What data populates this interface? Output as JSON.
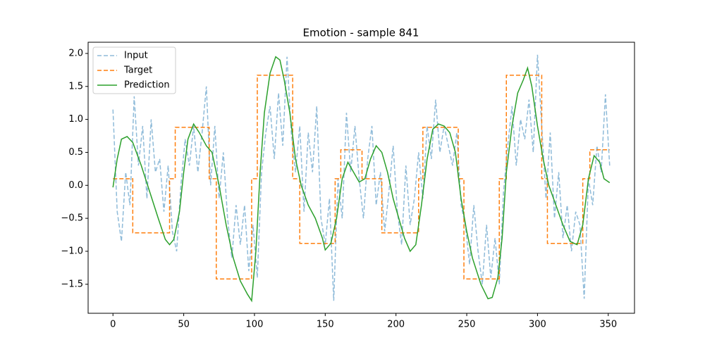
{
  "chart_data": {
    "type": "line",
    "title": "Emotion - sample 841",
    "xlim": [
      -17.55,
      368.55
    ],
    "xticks": [
      0,
      50,
      100,
      150,
      200,
      250,
      300,
      350
    ],
    "ylim": [
      -1.94,
      2.17
    ],
    "yticks": [
      {
        "value": -1.5,
        "label": "−1.5"
      },
      {
        "value": -1.0,
        "label": "−1.0"
      },
      {
        "value": -0.5,
        "label": "−0.5"
      },
      {
        "value": 0.0,
        "label": "0.0"
      },
      0.5,
      {
        "value": 1.0,
        "label": "1.0"
      },
      1.5,
      {
        "value": 2.0,
        "label": "2.0"
      }
    ],
    "legend": "upper left",
    "series": [
      {
        "name": "Input",
        "color": "#1f77b4",
        "alpha": 0.5,
        "linestyle": "dashed",
        "x": [
          0,
          3,
          6,
          9,
          12,
          15,
          18,
          21,
          24,
          27,
          30,
          33,
          36,
          39,
          42,
          45,
          48,
          51,
          54,
          57,
          60,
          63,
          66,
          69,
          72,
          75,
          78,
          81,
          84,
          87,
          90,
          93,
          96,
          99,
          102,
          105,
          108,
          111,
          114,
          117,
          120,
          123,
          126,
          129,
          132,
          135,
          138,
          141,
          144,
          147,
          150,
          153,
          156,
          159,
          162,
          165,
          168,
          171,
          174,
          177,
          180,
          183,
          186,
          189,
          192,
          195,
          198,
          201,
          204,
          207,
          210,
          213,
          216,
          219,
          222,
          225,
          228,
          231,
          234,
          237,
          240,
          243,
          246,
          249,
          252,
          255,
          258,
          261,
          264,
          267,
          270,
          273,
          276,
          279,
          282,
          285,
          288,
          291,
          294,
          297,
          300,
          303,
          306,
          309,
          312,
          315,
          318,
          321,
          324,
          327,
          330,
          333,
          336,
          339,
          342,
          345,
          348,
          351
        ],
        "values": [
          1.15,
          -0.4,
          -0.85,
          0.2,
          -0.3,
          1.35,
          0.3,
          0.9,
          -0.2,
          1.0,
          0.2,
          0.4,
          -0.4,
          0.3,
          -0.7,
          -1.0,
          0.0,
          0.7,
          0.3,
          0.9,
          0.2,
          0.8,
          1.5,
          0.0,
          0.9,
          -0.2,
          0.5,
          -0.5,
          -1.1,
          -0.3,
          -0.9,
          -0.3,
          -1.3,
          -0.6,
          -1.4,
          0.2,
          0.8,
          1.2,
          0.4,
          1.4,
          0.6,
          1.95,
          0.8,
          0.2,
          0.9,
          -0.4,
          0.8,
          0.2,
          1.2,
          -0.5,
          -0.9,
          -0.2,
          -1.75,
          0.1,
          -0.5,
          1.1,
          0.2,
          0.9,
          0.1,
          -0.5,
          0.4,
          0.9,
          -0.3,
          0.2,
          -0.7,
          -0.1,
          0.6,
          -0.4,
          -0.9,
          0.3,
          -0.6,
          -0.2,
          0.5,
          -0.2,
          0.9,
          0.4,
          1.3,
          0.5,
          0.9,
          0.6,
          0.3,
          0.8,
          -0.3,
          -0.6,
          -1.2,
          -0.3,
          -1.0,
          -1.5,
          -0.6,
          -1.4,
          -0.8,
          -1.5,
          -0.1,
          0.6,
          1.2,
          0.3,
          1.0,
          0.7,
          1.3,
          0.5,
          1.98,
          0.9,
          -0.2,
          0.8,
          -0.5,
          0.2,
          -0.8,
          -0.3,
          -1.0,
          -0.4,
          -0.6,
          -1.72,
          0.1,
          -0.3,
          0.6,
          0.2,
          1.38,
          0.3
        ]
      },
      {
        "name": "Target",
        "color": "#ff7f0e",
        "alpha": 1,
        "linestyle": "dashed",
        "x": [
          0,
          14,
          14,
          40,
          40,
          44,
          44,
          68,
          68,
          73,
          73,
          98,
          98,
          102,
          102,
          127,
          127,
          132,
          132,
          157,
          157,
          161,
          161,
          176,
          176,
          190,
          190,
          216,
          216,
          219,
          219,
          244,
          244,
          248,
          248,
          273,
          273,
          278,
          278,
          303,
          303,
          307,
          307,
          332,
          332,
          337,
          337,
          351
        ],
        "values": [
          0.1,
          0.1,
          -0.72,
          -0.72,
          0.1,
          0.1,
          0.88,
          0.88,
          0.1,
          0.1,
          -1.42,
          -1.42,
          0.1,
          0.1,
          1.67,
          1.67,
          0.1,
          0.1,
          -0.88,
          -0.88,
          0.1,
          0.1,
          0.54,
          0.54,
          0.1,
          0.1,
          -0.72,
          -0.72,
          0.1,
          0.1,
          0.88,
          0.88,
          0.1,
          0.1,
          -1.42,
          -1.42,
          0.1,
          0.1,
          1.67,
          1.67,
          0.1,
          0.1,
          -0.88,
          -0.88,
          0.1,
          0.1,
          0.54,
          0.54
        ]
      },
      {
        "name": "Prediction",
        "color": "#2ca02c",
        "alpha": 1,
        "linestyle": "solid",
        "x": [
          0,
          3,
          6,
          10,
          14,
          20,
          26,
          32,
          37,
          40,
          43,
          47,
          50,
          53,
          57,
          61,
          66,
          70,
          75,
          80,
          85,
          90,
          95,
          98,
          101,
          104,
          107,
          111,
          115,
          118,
          121,
          125,
          129,
          133,
          138,
          143,
          148,
          150,
          154,
          158,
          162,
          166,
          170,
          174,
          178,
          182,
          186,
          190,
          194,
          198,
          202,
          206,
          210,
          214,
          218,
          222,
          226,
          230,
          234,
          238,
          242,
          246,
          250,
          254,
          260,
          265,
          268,
          272,
          275,
          278,
          282,
          286,
          290,
          293,
          296,
          300,
          304,
          308,
          313,
          318,
          323,
          328,
          332,
          336,
          340,
          344,
          347,
          351
        ],
        "values": [
          -0.03,
          0.4,
          0.7,
          0.74,
          0.65,
          0.3,
          -0.1,
          -0.5,
          -0.82,
          -0.9,
          -0.82,
          -0.4,
          0.2,
          0.7,
          0.93,
          0.8,
          0.6,
          0.5,
          0.0,
          -0.6,
          -1.1,
          -1.45,
          -1.65,
          -1.75,
          -1.0,
          0.2,
          1.1,
          1.7,
          1.95,
          1.9,
          1.6,
          1.1,
          0.4,
          0.0,
          -0.3,
          -0.5,
          -0.8,
          -0.98,
          -0.88,
          -0.5,
          0.1,
          0.35,
          0.2,
          0.05,
          0.1,
          0.4,
          0.6,
          0.5,
          0.2,
          -0.2,
          -0.5,
          -0.8,
          -1.0,
          -0.9,
          -0.3,
          0.4,
          0.85,
          0.93,
          0.9,
          0.8,
          0.5,
          -0.2,
          -0.7,
          -1.1,
          -1.5,
          -1.72,
          -1.7,
          -1.4,
          -0.8,
          0.2,
          0.9,
          1.4,
          1.6,
          1.78,
          1.5,
          0.9,
          0.4,
          0.0,
          -0.3,
          -0.6,
          -0.85,
          -0.9,
          -0.6,
          0.1,
          0.45,
          0.35,
          0.1,
          0.04
        ]
      }
    ]
  }
}
